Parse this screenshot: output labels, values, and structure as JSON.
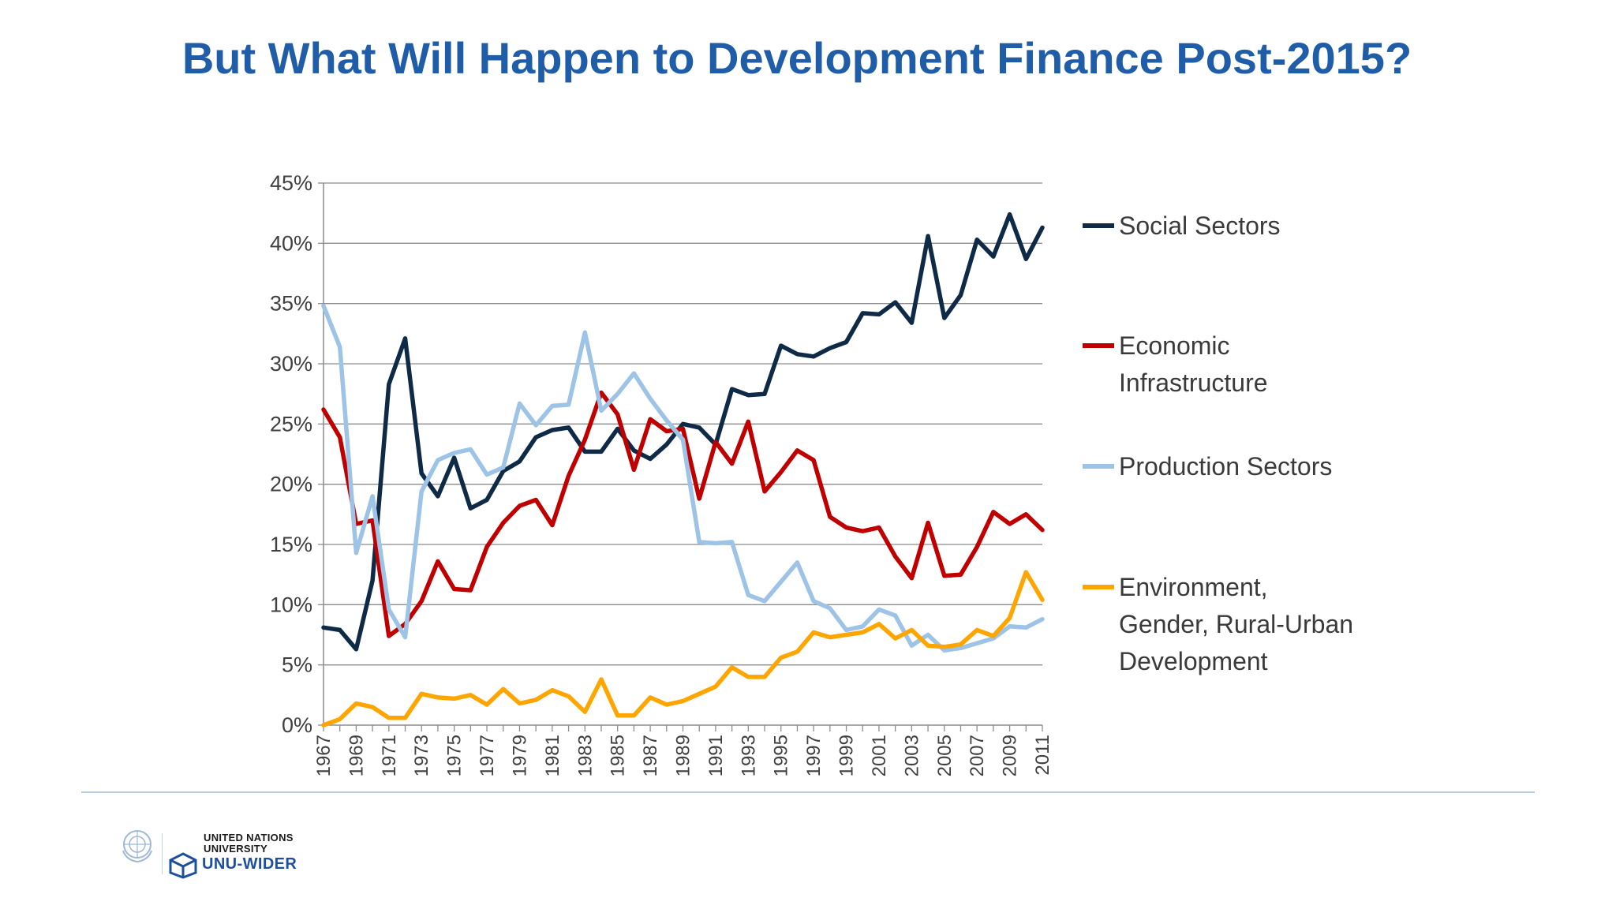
{
  "title": "But What Will Happen to Development Finance Post-2015?",
  "logo": {
    "line1": "UNITED NATIONS",
    "line2": "UNIVERSITY",
    "line3": "UNU-WIDER"
  },
  "colors": {
    "title": "#1f5da8",
    "social": "#0f2a47",
    "economic": "#c00000",
    "production": "#9dc3e6",
    "environment": "#ffa500"
  },
  "chart_data": {
    "type": "line",
    "title": "",
    "xlabel": "",
    "ylabel": "",
    "ylim": [
      0,
      45
    ],
    "ytick_labels": [
      "0%",
      "5%",
      "10%",
      "15%",
      "20%",
      "25%",
      "30%",
      "35%",
      "40%",
      "45%"
    ],
    "y_unit": "%",
    "grid": "horizontal",
    "legend_position": "right",
    "x": [
      1967,
      1968,
      1969,
      1970,
      1971,
      1972,
      1973,
      1974,
      1975,
      1976,
      1977,
      1978,
      1979,
      1980,
      1981,
      1982,
      1983,
      1984,
      1985,
      1986,
      1987,
      1988,
      1989,
      1990,
      1991,
      1992,
      1993,
      1994,
      1995,
      1996,
      1997,
      1998,
      1999,
      2000,
      2001,
      2002,
      2003,
      2004,
      2005,
      2006,
      2007,
      2008,
      2009,
      2010,
      2011
    ],
    "xtick_labels": [
      "1967",
      "1969",
      "1971",
      "1973",
      "1975",
      "1977",
      "1979",
      "1981",
      "1983",
      "1985",
      "1987",
      "1989",
      "1991",
      "1993",
      "1995",
      "1997",
      "1999",
      "2001",
      "2003",
      "2005",
      "2007",
      "2009",
      "2011"
    ],
    "series": [
      {
        "name": "Social Sectors",
        "color": "#0f2a47",
        "values": [
          8.1,
          7.9,
          6.3,
          12.0,
          28.3,
          32.1,
          20.9,
          19.0,
          22.2,
          18.0,
          18.7,
          21.1,
          21.9,
          23.9,
          24.5,
          24.7,
          22.7,
          22.7,
          24.6,
          22.8,
          22.1,
          23.3,
          25.0,
          24.7,
          23.3,
          27.9,
          27.4,
          27.5,
          31.5,
          30.8,
          30.6,
          31.3,
          31.8,
          34.2,
          34.1,
          35.1,
          33.4,
          40.6,
          33.8,
          35.7,
          40.3,
          38.9,
          42.4,
          38.7,
          41.3
        ]
      },
      {
        "name": "Economic Infrastructure",
        "color": "#c00000",
        "values": [
          26.2,
          23.9,
          16.7,
          17.0,
          7.4,
          8.4,
          10.3,
          13.6,
          11.3,
          11.2,
          14.8,
          16.8,
          18.2,
          18.7,
          16.6,
          20.7,
          23.7,
          27.6,
          25.8,
          21.2,
          25.4,
          24.4,
          24.6,
          18.8,
          23.5,
          21.7,
          25.2,
          19.4,
          21.0,
          22.8,
          22.0,
          17.3,
          16.4,
          16.1,
          16.4,
          14.0,
          12.2,
          16.8,
          12.4,
          12.5,
          14.8,
          17.7,
          16.7,
          17.5,
          16.2
        ]
      },
      {
        "name": "Production Sectors",
        "color": "#9dc3e6",
        "values": [
          34.8,
          31.4,
          14.3,
          19.0,
          9.6,
          7.3,
          19.4,
          22.0,
          22.6,
          22.9,
          20.8,
          21.4,
          26.7,
          24.9,
          26.5,
          26.6,
          32.6,
          26.1,
          27.5,
          29.2,
          27.1,
          25.3,
          23.7,
          15.2,
          15.1,
          15.2,
          10.8,
          10.3,
          11.9,
          13.5,
          10.3,
          9.7,
          7.9,
          8.2,
          9.6,
          9.1,
          6.6,
          7.5,
          6.2,
          6.4,
          6.8,
          7.2,
          8.2,
          8.1,
          8.8
        ]
      },
      {
        "name": "Environment, Gender, Rural-Urban Development",
        "color": "#ffa500",
        "values": [
          0.0,
          0.5,
          1.8,
          1.5,
          0.6,
          0.6,
          2.6,
          2.3,
          2.2,
          2.5,
          1.7,
          3.0,
          1.8,
          2.1,
          2.9,
          2.4,
          1.1,
          3.8,
          0.8,
          0.8,
          2.3,
          1.7,
          2.0,
          2.6,
          3.2,
          4.8,
          4.0,
          4.0,
          5.6,
          6.1,
          7.7,
          7.3,
          7.5,
          7.7,
          8.4,
          7.2,
          7.9,
          6.6,
          6.5,
          6.7,
          7.9,
          7.4,
          8.9,
          12.7,
          10.4
        ]
      }
    ],
    "legend": [
      {
        "lines": [
          "Social Sectors"
        ]
      },
      {
        "lines": [
          "Economic",
          "Infrastructure"
        ]
      },
      {
        "lines": [
          "Production Sectors"
        ]
      },
      {
        "lines": [
          "Environment,",
          "Gender, Rural-Urban",
          "Development"
        ]
      }
    ]
  }
}
